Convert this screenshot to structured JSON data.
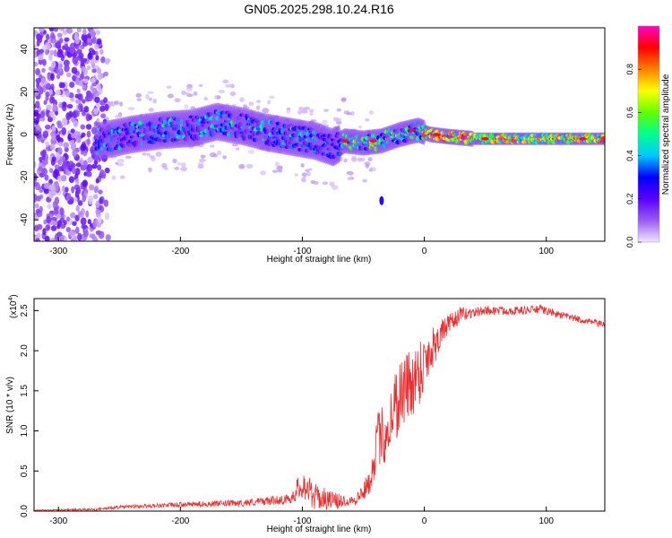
{
  "figure": {
    "title": "GN05.2025.298.10.24.R16"
  },
  "chart_data": [
    {
      "type": "heatmap",
      "name": "spectrogram",
      "title": "",
      "xlabel": "Height of straight line (km)",
      "ylabel": "Frequency (Hz)",
      "xlim": [
        -320,
        148
      ],
      "ylim": [
        -50,
        50
      ],
      "x_ticks": [
        -300,
        -200,
        -100,
        0,
        100
      ],
      "x_tick_labels": [
        "-300",
        "-200",
        "-100",
        "0",
        "100"
      ],
      "y_ticks": [
        -40,
        -20,
        0,
        20,
        40
      ],
      "y_tick_labels": [
        "-40",
        "-20",
        "0",
        "20",
        "40"
      ],
      "colorbar": {
        "label": "Normalized spectral amplitude",
        "range": [
          0.0,
          1.0
        ],
        "ticks": [
          0.0,
          0.2,
          0.4,
          0.6,
          0.8
        ],
        "tick_labels": [
          "0.0",
          "0.2",
          "0.4",
          "0.6",
          "0.8"
        ],
        "colors": [
          "#f0e6ff",
          "#9b5cf0",
          "#5a00ff",
          "#0000ff",
          "#00c8ff",
          "#00ff90",
          "#60ff00",
          "#ffff00",
          "#ff8000",
          "#ff0000",
          "#ff00c8"
        ]
      },
      "ridge_center_hz": [
        {
          "x": -265,
          "y": -3
        },
        {
          "x": -240,
          "y": 0
        },
        {
          "x": -215,
          "y": 2
        },
        {
          "x": -190,
          "y": 3
        },
        {
          "x": -170,
          "y": 6
        },
        {
          "x": -150,
          "y": 4
        },
        {
          "x": -130,
          "y": 1
        },
        {
          "x": -110,
          "y": -1
        },
        {
          "x": -90,
          "y": -3
        },
        {
          "x": -75,
          "y": -6
        },
        {
          "x": -65,
          "y": -3
        },
        {
          "x": -50,
          "y": -4
        },
        {
          "x": -35,
          "y": -3
        },
        {
          "x": -20,
          "y": 0
        },
        {
          "x": -5,
          "y": 2
        },
        {
          "x": 5,
          "y": 0
        },
        {
          "x": 20,
          "y": -1
        },
        {
          "x": 40,
          "y": -2
        },
        {
          "x": 80,
          "y": -2
        },
        {
          "x": 148,
          "y": -2
        }
      ],
      "isolated_blob": {
        "x": -35,
        "y": -31
      }
    },
    {
      "type": "line",
      "name": "snr",
      "xlabel": "Height of straight line (km)",
      "ylabel": "SNR (10 * v/v)",
      "multiplier_label": "(x10",
      "multiplier_exponent": "4",
      "xlim": [
        -320,
        148
      ],
      "ylim": [
        0,
        2.65
      ],
      "x_ticks": [
        -300,
        -200,
        -100,
        0,
        100
      ],
      "x_tick_labels": [
        "-300",
        "-200",
        "-100",
        "0",
        "100"
      ],
      "y_ticks": [
        0.0,
        0.5,
        1.0,
        1.5,
        2.0,
        2.5
      ],
      "y_tick_labels": [
        "0.0",
        "0.5",
        "1.0",
        "1.5",
        "2.0",
        "2.5"
      ],
      "line_color": "#e83030",
      "series": [
        {
          "name": "SNR",
          "points": [
            {
              "x": -320,
              "y": 0.01
            },
            {
              "x": -270,
              "y": 0.02
            },
            {
              "x": -250,
              "y": 0.05
            },
            {
              "x": -200,
              "y": 0.08
            },
            {
              "x": -150,
              "y": 0.1
            },
            {
              "x": -110,
              "y": 0.15
            },
            {
              "x": -100,
              "y": 0.35
            },
            {
              "x": -90,
              "y": 0.18
            },
            {
              "x": -70,
              "y": 0.12
            },
            {
              "x": -55,
              "y": 0.15
            },
            {
              "x": -45,
              "y": 0.35
            },
            {
              "x": -38,
              "y": 0.9
            },
            {
              "x": -30,
              "y": 1.0
            },
            {
              "x": -25,
              "y": 1.3
            },
            {
              "x": -18,
              "y": 1.5
            },
            {
              "x": -10,
              "y": 1.6
            },
            {
              "x": -2,
              "y": 1.8
            },
            {
              "x": 5,
              "y": 2.0
            },
            {
              "x": 15,
              "y": 2.25
            },
            {
              "x": 30,
              "y": 2.45
            },
            {
              "x": 50,
              "y": 2.5
            },
            {
              "x": 80,
              "y": 2.5
            },
            {
              "x": 95,
              "y": 2.52
            },
            {
              "x": 110,
              "y": 2.45
            },
            {
              "x": 130,
              "y": 2.38
            },
            {
              "x": 148,
              "y": 2.32
            }
          ],
          "noise": [
            {
              "x": -320,
              "a": 0.01
            },
            {
              "x": -250,
              "a": 0.04
            },
            {
              "x": -160,
              "a": 0.08
            },
            {
              "x": -110,
              "a": 0.12
            },
            {
              "x": -100,
              "a": 0.4
            },
            {
              "x": -60,
              "a": 0.12
            },
            {
              "x": -45,
              "a": 0.3
            },
            {
              "x": -38,
              "a": 0.7
            },
            {
              "x": -20,
              "a": 1.0
            },
            {
              "x": 0,
              "a": 0.8
            },
            {
              "x": 15,
              "a": 0.3
            },
            {
              "x": 40,
              "a": 0.12
            },
            {
              "x": 148,
              "a": 0.08
            }
          ]
        }
      ]
    }
  ]
}
